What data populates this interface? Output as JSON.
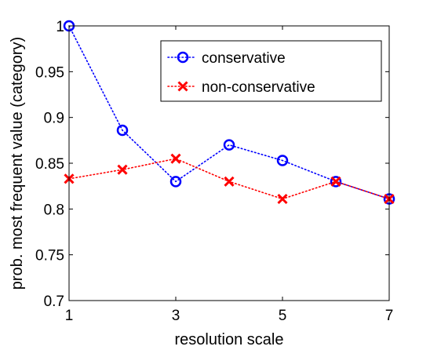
{
  "chart_data": {
    "type": "line",
    "title": "",
    "xlabel": "resolution scale",
    "ylabel": "prob. most frequent value (category)",
    "xlim": [
      1,
      7
    ],
    "ylim": [
      0.7,
      1.0
    ],
    "xticks": [
      1,
      3,
      5,
      7
    ],
    "xtick_labels": [
      "1",
      "3",
      "5",
      "7"
    ],
    "yticks": [
      0.7,
      0.75,
      0.8,
      0.85,
      0.9,
      0.95,
      1.0
    ],
    "ytick_labels": [
      "0.7",
      "0.75",
      "0.8",
      "0.85",
      "0.9",
      "0.95",
      "1"
    ],
    "grid": false,
    "legend_position": "top-right",
    "x": [
      1,
      2,
      3,
      4,
      5,
      6,
      7
    ],
    "series": [
      {
        "name": "conservative",
        "values": [
          1.0,
          0.886,
          0.83,
          0.87,
          0.853,
          0.83,
          0.811
        ],
        "color": "#0000ff",
        "marker": "circle",
        "line_style": "dotted"
      },
      {
        "name": "non-conservative",
        "values": [
          0.833,
          0.843,
          0.855,
          0.83,
          0.811,
          0.83,
          0.811
        ],
        "color": "#ff0000",
        "marker": "x",
        "line_style": "dotted"
      }
    ]
  }
}
